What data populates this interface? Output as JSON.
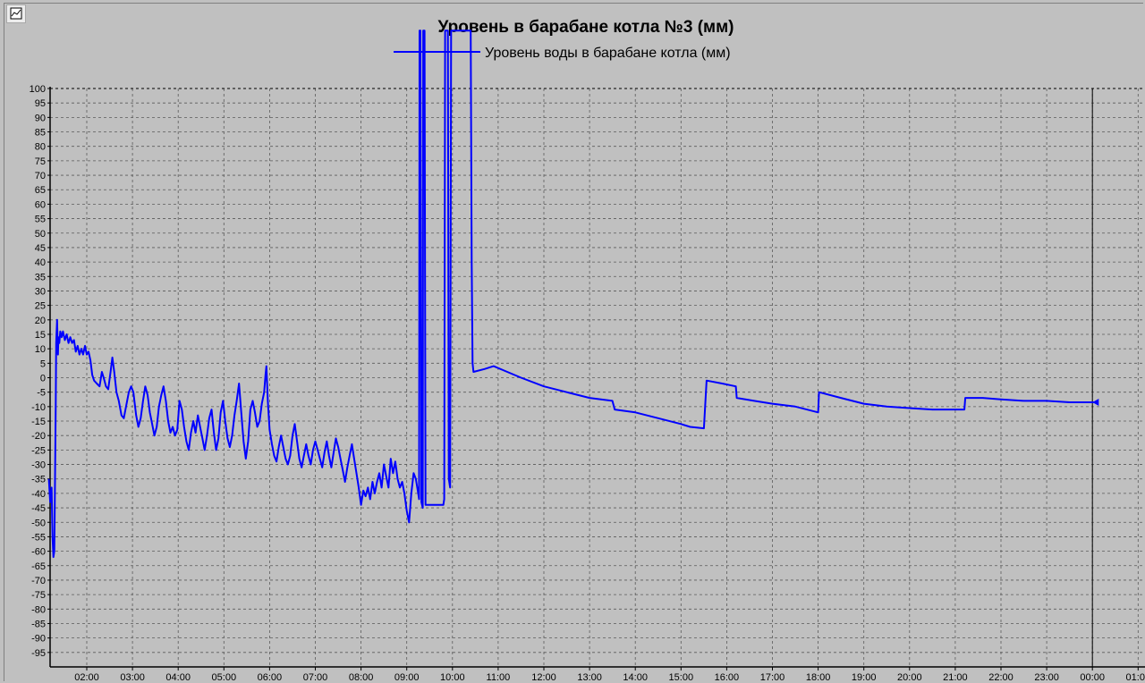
{
  "toolbar": {
    "properties_icon": "chart-properties-icon"
  },
  "chart_data": {
    "type": "line",
    "title": "Уровень в барабане котла №3 (мм)",
    "series": [
      {
        "name": "Уровень воды в барабане котла (мм)",
        "color": "#0000ff",
        "points": [
          [
            1.17,
            -35
          ],
          [
            1.2,
            -43
          ],
          [
            1.23,
            -38
          ],
          [
            1.25,
            -55
          ],
          [
            1.27,
            -62
          ],
          [
            1.29,
            -60
          ],
          [
            1.3,
            -45
          ],
          [
            1.32,
            -10
          ],
          [
            1.33,
            12
          ],
          [
            1.35,
            20
          ],
          [
            1.37,
            8
          ],
          [
            1.38,
            14
          ],
          [
            1.4,
            12
          ],
          [
            1.42,
            16
          ],
          [
            1.45,
            14
          ],
          [
            1.48,
            16
          ],
          [
            1.52,
            13
          ],
          [
            1.56,
            15
          ],
          [
            1.6,
            12
          ],
          [
            1.64,
            14
          ],
          [
            1.68,
            12
          ],
          [
            1.72,
            13
          ],
          [
            1.76,
            9
          ],
          [
            1.8,
            11
          ],
          [
            1.84,
            8
          ],
          [
            1.88,
            10
          ],
          [
            1.92,
            8
          ],
          [
            1.96,
            11
          ],
          [
            2.0,
            8
          ],
          [
            2.04,
            9
          ],
          [
            2.08,
            6
          ],
          [
            2.12,
            1
          ],
          [
            2.16,
            -1
          ],
          [
            2.22,
            -2
          ],
          [
            2.28,
            -3
          ],
          [
            2.33,
            2
          ],
          [
            2.37,
            0
          ],
          [
            2.42,
            -3
          ],
          [
            2.47,
            -4
          ],
          [
            2.52,
            2
          ],
          [
            2.56,
            7
          ],
          [
            2.6,
            2
          ],
          [
            2.65,
            -5
          ],
          [
            2.7,
            -8
          ],
          [
            2.76,
            -13
          ],
          [
            2.81,
            -14
          ],
          [
            2.86,
            -10
          ],
          [
            2.92,
            -5
          ],
          [
            2.97,
            -3
          ],
          [
            3.02,
            -5
          ],
          [
            3.08,
            -13
          ],
          [
            3.13,
            -17
          ],
          [
            3.18,
            -14
          ],
          [
            3.23,
            -8
          ],
          [
            3.28,
            -3
          ],
          [
            3.33,
            -6
          ],
          [
            3.38,
            -12
          ],
          [
            3.43,
            -16
          ],
          [
            3.48,
            -20
          ],
          [
            3.53,
            -17
          ],
          [
            3.58,
            -10
          ],
          [
            3.63,
            -6
          ],
          [
            3.68,
            -3
          ],
          [
            3.73,
            -8
          ],
          [
            3.78,
            -15
          ],
          [
            3.83,
            -19
          ],
          [
            3.88,
            -17
          ],
          [
            3.93,
            -20
          ],
          [
            3.98,
            -18
          ],
          [
            4.03,
            -8
          ],
          [
            4.08,
            -11
          ],
          [
            4.13,
            -17
          ],
          [
            4.18,
            -22
          ],
          [
            4.23,
            -25
          ],
          [
            4.28,
            -19
          ],
          [
            4.33,
            -15
          ],
          [
            4.38,
            -19
          ],
          [
            4.43,
            -13
          ],
          [
            4.48,
            -17
          ],
          [
            4.53,
            -21
          ],
          [
            4.58,
            -25
          ],
          [
            4.63,
            -20
          ],
          [
            4.68,
            -14
          ],
          [
            4.73,
            -11
          ],
          [
            4.78,
            -19
          ],
          [
            4.83,
            -25
          ],
          [
            4.88,
            -21
          ],
          [
            4.93,
            -12
          ],
          [
            4.98,
            -8
          ],
          [
            5.03,
            -15
          ],
          [
            5.08,
            -21
          ],
          [
            5.13,
            -24
          ],
          [
            5.18,
            -20
          ],
          [
            5.23,
            -13
          ],
          [
            5.28,
            -8
          ],
          [
            5.33,
            -2
          ],
          [
            5.38,
            -12
          ],
          [
            5.43,
            -22
          ],
          [
            5.48,
            -28
          ],
          [
            5.53,
            -22
          ],
          [
            5.58,
            -11
          ],
          [
            5.63,
            -8
          ],
          [
            5.68,
            -12
          ],
          [
            5.73,
            -17
          ],
          [
            5.78,
            -15
          ],
          [
            5.83,
            -9
          ],
          [
            5.88,
            -5
          ],
          [
            5.91,
            1
          ],
          [
            5.93,
            4
          ],
          [
            5.96,
            -8
          ],
          [
            6.0,
            -18
          ],
          [
            6.05,
            -23
          ],
          [
            6.1,
            -27
          ],
          [
            6.15,
            -29
          ],
          [
            6.2,
            -24
          ],
          [
            6.25,
            -20
          ],
          [
            6.3,
            -24
          ],
          [
            6.35,
            -28
          ],
          [
            6.4,
            -30
          ],
          [
            6.45,
            -27
          ],
          [
            6.5,
            -20
          ],
          [
            6.55,
            -16
          ],
          [
            6.6,
            -22
          ],
          [
            6.65,
            -28
          ],
          [
            6.7,
            -31
          ],
          [
            6.75,
            -27
          ],
          [
            6.8,
            -23
          ],
          [
            6.85,
            -27
          ],
          [
            6.9,
            -30
          ],
          [
            6.95,
            -25
          ],
          [
            7.0,
            -22
          ],
          [
            7.05,
            -25
          ],
          [
            7.1,
            -28
          ],
          [
            7.15,
            -31
          ],
          [
            7.2,
            -26
          ],
          [
            7.25,
            -22
          ],
          [
            7.3,
            -27
          ],
          [
            7.35,
            -31
          ],
          [
            7.4,
            -26
          ],
          [
            7.45,
            -21
          ],
          [
            7.5,
            -24
          ],
          [
            7.55,
            -28
          ],
          [
            7.6,
            -32
          ],
          [
            7.65,
            -36
          ],
          [
            7.7,
            -31
          ],
          [
            7.75,
            -27
          ],
          [
            7.8,
            -23
          ],
          [
            7.85,
            -28
          ],
          [
            7.9,
            -33
          ],
          [
            7.95,
            -38
          ],
          [
            8.0,
            -44
          ],
          [
            8.05,
            -39
          ],
          [
            8.1,
            -41
          ],
          [
            8.15,
            -38
          ],
          [
            8.2,
            -42
          ],
          [
            8.25,
            -36
          ],
          [
            8.3,
            -40
          ],
          [
            8.35,
            -36
          ],
          [
            8.4,
            -33
          ],
          [
            8.45,
            -38
          ],
          [
            8.5,
            -30
          ],
          [
            8.55,
            -34
          ],
          [
            8.6,
            -38
          ],
          [
            8.65,
            -28
          ],
          [
            8.7,
            -33
          ],
          [
            8.75,
            -29
          ],
          [
            8.8,
            -35
          ],
          [
            8.85,
            -38
          ],
          [
            8.9,
            -36
          ],
          [
            8.95,
            -40
          ],
          [
            9.0,
            -46
          ],
          [
            9.05,
            -50
          ],
          [
            9.1,
            -40
          ],
          [
            9.15,
            -33
          ],
          [
            9.2,
            -35
          ],
          [
            9.25,
            -40
          ],
          [
            9.27,
            -42
          ],
          [
            9.28,
            120
          ],
          [
            9.3,
            120
          ],
          [
            9.32,
            -43
          ],
          [
            9.35,
            -45
          ],
          [
            9.36,
            120
          ],
          [
            9.39,
            120
          ],
          [
            9.41,
            -44
          ],
          [
            9.43,
            -44
          ],
          [
            9.8,
            -44
          ],
          [
            9.82,
            -42
          ],
          [
            9.84,
            120
          ],
          [
            9.9,
            120
          ],
          [
            9.92,
            -35
          ],
          [
            9.95,
            -38
          ],
          [
            9.97,
            120
          ],
          [
            10.4,
            120
          ],
          [
            10.42,
            40
          ],
          [
            10.44,
            5
          ],
          [
            10.46,
            2
          ],
          [
            10.7,
            3
          ],
          [
            10.9,
            4
          ],
          [
            11.2,
            2
          ],
          [
            11.5,
            0
          ],
          [
            12.0,
            -3
          ],
          [
            12.5,
            -5
          ],
          [
            13.0,
            -7
          ],
          [
            13.5,
            -8
          ],
          [
            13.55,
            -11
          ],
          [
            14.0,
            -12
          ],
          [
            14.5,
            -14
          ],
          [
            15.0,
            -16
          ],
          [
            15.2,
            -17
          ],
          [
            15.5,
            -17.5
          ],
          [
            15.56,
            -1
          ],
          [
            15.9,
            -2
          ],
          [
            16.2,
            -3
          ],
          [
            16.22,
            -7
          ],
          [
            16.6,
            -8
          ],
          [
            17.0,
            -9
          ],
          [
            17.5,
            -10
          ],
          [
            18.0,
            -12
          ],
          [
            18.02,
            -5
          ],
          [
            18.5,
            -7
          ],
          [
            19.0,
            -9
          ],
          [
            19.5,
            -10
          ],
          [
            20.0,
            -10.5
          ],
          [
            20.5,
            -11
          ],
          [
            21.0,
            -11
          ],
          [
            21.2,
            -11
          ],
          [
            21.22,
            -7
          ],
          [
            21.6,
            -7
          ],
          [
            22.0,
            -7.5
          ],
          [
            22.5,
            -8
          ],
          [
            23.0,
            -8
          ],
          [
            23.5,
            -8.5
          ],
          [
            24.0,
            -8.5
          ],
          [
            24.1,
            -8.5
          ]
        ]
      }
    ],
    "x_ticks": [
      "02:00",
      "03:00",
      "04:00",
      "05:00",
      "06:00",
      "07:00",
      "08:00",
      "09:00",
      "10:00",
      "11:00",
      "12:00",
      "13:00",
      "14:00",
      "15:00",
      "16:00",
      "17:00",
      "18:00",
      "19:00",
      "20:00",
      "21:00",
      "22:00",
      "23:00",
      "00:00",
      "01:00"
    ],
    "y_ticks": [
      100,
      95,
      90,
      85,
      80,
      75,
      70,
      65,
      60,
      55,
      50,
      45,
      40,
      35,
      30,
      25,
      20,
      15,
      10,
      5,
      0,
      -5,
      -10,
      -15,
      -20,
      -25,
      -30,
      -35,
      -40,
      -45,
      -50,
      -55,
      -60,
      -65,
      -70,
      -75,
      -80,
      -85,
      -90,
      -95
    ],
    "ylim": [
      -100,
      100
    ],
    "xlim": [
      "01:13",
      "01:04 (next day)"
    ],
    "grid": true,
    "legend": "top-center",
    "cursor_marker_color": "#0000ff"
  }
}
